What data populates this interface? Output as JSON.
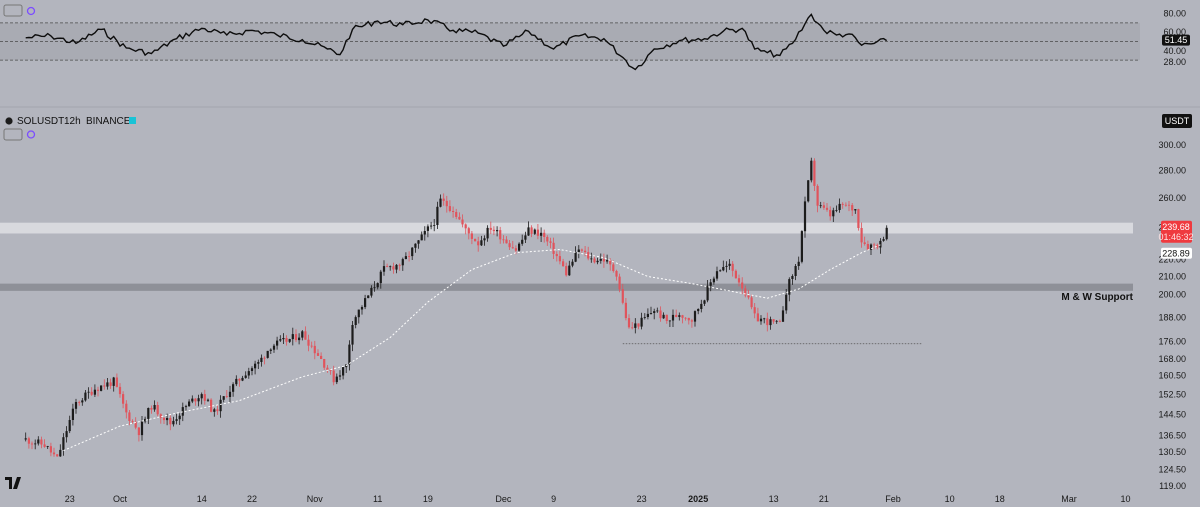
{
  "legend": {
    "symbol": "SOLUSDT",
    "interval": "12h",
    "exchange": "BINANCE"
  },
  "currency_badge": "USDT",
  "annotation": "M & W Support",
  "colors": {
    "background": "#b3b5be",
    "up": "#1c1c1c",
    "down": "#e0545c",
    "price_badge": "#ef3a3f",
    "ma_line": "#ffffff",
    "resistance_zone": "#d8d9de",
    "support_zone": "#8e9098"
  },
  "chart_data": [
    {
      "type": "line",
      "name": "RSI",
      "y_ticks": [
        "80.00",
        "60.00",
        "40.00",
        "28.00"
      ],
      "level_lines": [
        70,
        50,
        30
      ],
      "last_value": "51.45",
      "points": [
        {
          "x": "2024-09-16",
          "y": 54
        },
        {
          "x": "2024-09-20",
          "y": 56
        },
        {
          "x": "2024-09-24",
          "y": 48
        },
        {
          "x": "2024-09-28",
          "y": 63
        },
        {
          "x": "2024-10-02",
          "y": 43
        },
        {
          "x": "2024-10-06",
          "y": 37
        },
        {
          "x": "2024-10-10",
          "y": 53
        },
        {
          "x": "2024-10-14",
          "y": 64
        },
        {
          "x": "2024-10-18",
          "y": 57
        },
        {
          "x": "2024-10-22",
          "y": 62
        },
        {
          "x": "2024-10-26",
          "y": 57
        },
        {
          "x": "2024-10-30",
          "y": 52
        },
        {
          "x": "2024-11-03",
          "y": 42
        },
        {
          "x": "2024-11-05",
          "y": 36
        },
        {
          "x": "2024-11-07",
          "y": 63
        },
        {
          "x": "2024-11-11",
          "y": 72
        },
        {
          "x": "2024-11-15",
          "y": 68
        },
        {
          "x": "2024-11-19",
          "y": 73
        },
        {
          "x": "2024-11-23",
          "y": 62
        },
        {
          "x": "2024-11-27",
          "y": 59
        },
        {
          "x": "2024-12-01",
          "y": 45
        },
        {
          "x": "2024-12-05",
          "y": 61
        },
        {
          "x": "2024-12-09",
          "y": 42
        },
        {
          "x": "2024-12-13",
          "y": 56
        },
        {
          "x": "2024-12-17",
          "y": 53
        },
        {
          "x": "2024-12-20",
          "y": 33
        },
        {
          "x": "2024-12-22",
          "y": 20
        },
        {
          "x": "2024-12-25",
          "y": 42
        },
        {
          "x": "2024-12-29",
          "y": 51
        },
        {
          "x": "2025-01-02",
          "y": 53
        },
        {
          "x": "2025-01-05",
          "y": 61
        },
        {
          "x": "2025-01-08",
          "y": 64
        },
        {
          "x": "2025-01-10",
          "y": 42
        },
        {
          "x": "2025-01-12",
          "y": 38
        },
        {
          "x": "2025-01-14",
          "y": 35
        },
        {
          "x": "2025-01-16",
          "y": 48
        },
        {
          "x": "2025-01-18",
          "y": 69
        },
        {
          "x": "2025-01-19",
          "y": 79
        },
        {
          "x": "2025-01-21",
          "y": 62
        },
        {
          "x": "2025-01-23",
          "y": 57
        },
        {
          "x": "2025-01-25",
          "y": 58
        },
        {
          "x": "2025-01-27",
          "y": 46
        },
        {
          "x": "2025-01-29",
          "y": 48
        },
        {
          "x": "2025-01-31",
          "y": 51
        }
      ]
    },
    {
      "type": "candlestick",
      "title": "SOLUSDT · 12h · BINANCE",
      "y_ticks": [
        "300.00",
        "280.00",
        "260.00",
        "240.00",
        "220.00",
        "210.00",
        "200.00",
        "188.00",
        "176.00",
        "168.00",
        "160.50",
        "152.50",
        "144.50",
        "136.50",
        "130.50",
        "124.50",
        "119.00"
      ],
      "x_ticks": [
        {
          "date": "2024-09-23",
          "label": "23"
        },
        {
          "date": "2024-10-01",
          "label": "Oct"
        },
        {
          "date": "2024-10-14",
          "label": "14"
        },
        {
          "date": "2024-10-22",
          "label": "22"
        },
        {
          "date": "2024-11-01",
          "label": "Nov"
        },
        {
          "date": "2024-11-11",
          "label": "11"
        },
        {
          "date": "2024-11-19",
          "label": "19"
        },
        {
          "date": "2024-12-01",
          "label": "Dec"
        },
        {
          "date": "2024-12-09",
          "label": "9"
        },
        {
          "date": "2024-12-23",
          "label": "23"
        },
        {
          "date": "2025-01-01",
          "label": "2025"
        },
        {
          "date": "2025-01-13",
          "label": "13"
        },
        {
          "date": "2025-01-21",
          "label": "21"
        },
        {
          "date": "2025-02-01",
          "label": "Feb"
        },
        {
          "date": "2025-02-10",
          "label": "10"
        },
        {
          "date": "2025-02-18",
          "label": "18"
        },
        {
          "date": "2025-03-01",
          "label": "Mar"
        },
        {
          "date": "2025-03-10",
          "label": "10"
        }
      ],
      "last_price": "239.68",
      "countdown": "01:46:32",
      "ma_value": "228.89",
      "resistance_zone": [
        236,
        243
      ],
      "support_zone": [
        202,
        206
      ],
      "support_low_line": {
        "price": 175,
        "from": "2024-12-20",
        "to": "2025-01-27"
      },
      "price_path": [
        {
          "x": "2024-09-16",
          "y": 135
        },
        {
          "x": "2024-09-19",
          "y": 133
        },
        {
          "x": "2024-09-21",
          "y": 128
        },
        {
          "x": "2024-09-24",
          "y": 149
        },
        {
          "x": "2024-09-27",
          "y": 155
        },
        {
          "x": "2024-09-30",
          "y": 158
        },
        {
          "x": "2024-10-02",
          "y": 145
        },
        {
          "x": "2024-10-04",
          "y": 138
        },
        {
          "x": "2024-10-06",
          "y": 148
        },
        {
          "x": "2024-10-09",
          "y": 141
        },
        {
          "x": "2024-10-12",
          "y": 149
        },
        {
          "x": "2024-10-14",
          "y": 153
        },
        {
          "x": "2024-10-16",
          "y": 145
        },
        {
          "x": "2024-10-18",
          "y": 153
        },
        {
          "x": "2024-10-21",
          "y": 162
        },
        {
          "x": "2024-10-23",
          "y": 166
        },
        {
          "x": "2024-10-25",
          "y": 174
        },
        {
          "x": "2024-10-28",
          "y": 177
        },
        {
          "x": "2024-10-30",
          "y": 180
        },
        {
          "x": "2024-11-02",
          "y": 168
        },
        {
          "x": "2024-11-04",
          "y": 159
        },
        {
          "x": "2024-11-06",
          "y": 165
        },
        {
          "x": "2024-11-07",
          "y": 186
        },
        {
          "x": "2024-11-10",
          "y": 202
        },
        {
          "x": "2024-11-12",
          "y": 214
        },
        {
          "x": "2024-11-15",
          "y": 218
        },
        {
          "x": "2024-11-17",
          "y": 228
        },
        {
          "x": "2024-11-20",
          "y": 244
        },
        {
          "x": "2024-11-21",
          "y": 258
        },
        {
          "x": "2024-11-23",
          "y": 252
        },
        {
          "x": "2024-11-25",
          "y": 238
        },
        {
          "x": "2024-11-27",
          "y": 230
        },
        {
          "x": "2024-11-29",
          "y": 240
        },
        {
          "x": "2024-12-01",
          "y": 233
        },
        {
          "x": "2024-12-03",
          "y": 226
        },
        {
          "x": "2024-12-05",
          "y": 238
        },
        {
          "x": "2024-12-07",
          "y": 236
        },
        {
          "x": "2024-12-09",
          "y": 225
        },
        {
          "x": "2024-12-11",
          "y": 212
        },
        {
          "x": "2024-12-13",
          "y": 226
        },
        {
          "x": "2024-12-15",
          "y": 220
        },
        {
          "x": "2024-12-17",
          "y": 220
        },
        {
          "x": "2024-12-19",
          "y": 212
        },
        {
          "x": "2024-12-20",
          "y": 195
        },
        {
          "x": "2024-12-21",
          "y": 182
        },
        {
          "x": "2024-12-23",
          "y": 186
        },
        {
          "x": "2024-12-25",
          "y": 192
        },
        {
          "x": "2024-12-27",
          "y": 186
        },
        {
          "x": "2024-12-29",
          "y": 190
        },
        {
          "x": "2024-12-31",
          "y": 187
        },
        {
          "x": "2025-01-02",
          "y": 199
        },
        {
          "x": "2025-01-04",
          "y": 214
        },
        {
          "x": "2025-01-06",
          "y": 216
        },
        {
          "x": "2025-01-08",
          "y": 205
        },
        {
          "x": "2025-01-10",
          "y": 188
        },
        {
          "x": "2025-01-12",
          "y": 186
        },
        {
          "x": "2025-01-14",
          "y": 184
        },
        {
          "x": "2025-01-15",
          "y": 202
        },
        {
          "x": "2025-01-17",
          "y": 220
        },
        {
          "x": "2025-01-18",
          "y": 255
        },
        {
          "x": "2025-01-19",
          "y": 285
        },
        {
          "x": "2025-01-20",
          "y": 255
        },
        {
          "x": "2025-01-22",
          "y": 248
        },
        {
          "x": "2025-01-24",
          "y": 255
        },
        {
          "x": "2025-01-26",
          "y": 252
        },
        {
          "x": "2025-01-27",
          "y": 232
        },
        {
          "x": "2025-01-28",
          "y": 228
        },
        {
          "x": "2025-01-30",
          "y": 230
        },
        {
          "x": "2025-01-31",
          "y": 239.68
        }
      ],
      "ma_path": [
        {
          "x": "2024-09-22",
          "y": 131
        },
        {
          "x": "2024-10-01",
          "y": 140
        },
        {
          "x": "2024-10-10",
          "y": 145
        },
        {
          "x": "2024-10-20",
          "y": 150
        },
        {
          "x": "2024-10-30",
          "y": 160
        },
        {
          "x": "2024-11-06",
          "y": 165
        },
        {
          "x": "2024-11-13",
          "y": 178
        },
        {
          "x": "2024-11-19",
          "y": 196
        },
        {
          "x": "2024-11-26",
          "y": 214
        },
        {
          "x": "2024-12-03",
          "y": 224
        },
        {
          "x": "2024-12-10",
          "y": 226
        },
        {
          "x": "2024-12-17",
          "y": 221
        },
        {
          "x": "2024-12-24",
          "y": 210
        },
        {
          "x": "2024-12-31",
          "y": 206
        },
        {
          "x": "2025-01-06",
          "y": 202
        },
        {
          "x": "2025-01-12",
          "y": 198
        },
        {
          "x": "2025-01-17",
          "y": 203
        },
        {
          "x": "2025-01-22",
          "y": 214
        },
        {
          "x": "2025-01-27",
          "y": 224
        },
        {
          "x": "2025-01-30",
          "y": 228.89
        }
      ]
    }
  ]
}
